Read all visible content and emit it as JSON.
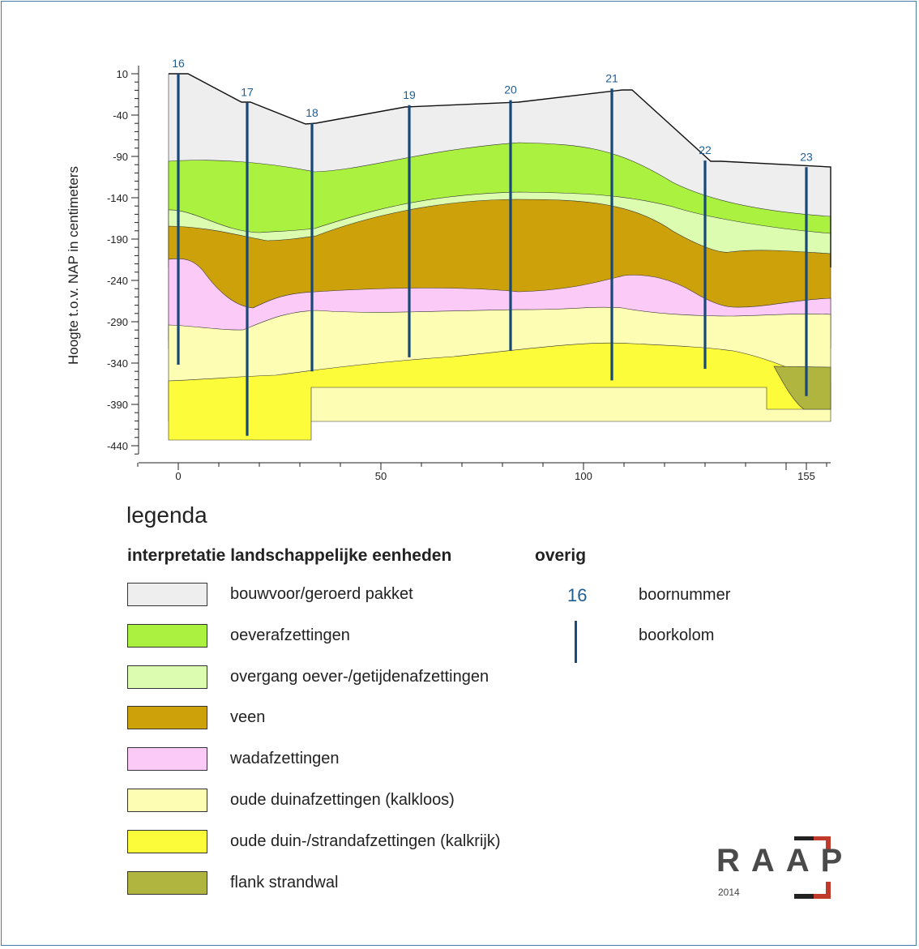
{
  "chart_data": {
    "type": "cross-section",
    "ylabel": "Hoogte t.o.v. NAP in centimeters",
    "xlabel": "",
    "y_ticks": [
      "10",
      "-40",
      "-90",
      "-140",
      "-190",
      "-240",
      "-290",
      "-340",
      "-390",
      "-440"
    ],
    "x_ticks": [
      "0",
      "50",
      "100",
      "155"
    ],
    "ylim": [
      -460,
      20
    ],
    "xlim": [
      -10,
      160
    ],
    "boreholes": [
      {
        "id": "16",
        "x": 0,
        "top": 10,
        "bottom": -342
      },
      {
        "id": "17",
        "x": 17,
        "top": -25,
        "bottom": -428
      },
      {
        "id": "18",
        "x": 33,
        "top": -50,
        "bottom": -350
      },
      {
        "id": "19",
        "x": 57,
        "top": -28,
        "bottom": -333
      },
      {
        "id": "20",
        "x": 82,
        "top": -22,
        "bottom": -325
      },
      {
        "id": "21",
        "x": 107,
        "top": -8,
        "bottom": -361
      },
      {
        "id": "22",
        "x": 130,
        "top": -95,
        "bottom": -347
      },
      {
        "id": "23",
        "x": 155,
        "top": -103,
        "bottom": -380
      }
    ],
    "units": [
      {
        "name": "bouwvoor/geroerd pakket",
        "color": "#eeeeee"
      },
      {
        "name": "oeverafzettingen",
        "color": "#aaf23f"
      },
      {
        "name": "overgang oever-/getijdenafzettingen",
        "color": "#dcfdaf"
      },
      {
        "name": "veen",
        "color": "#cda10a"
      },
      {
        "name": "wadafzettingen",
        "color": "#fccaf7"
      },
      {
        "name": "oude duinafzettingen (kalkloos)",
        "color": "#fdfdb3"
      },
      {
        "name": "oude duin-/strandafzettingen (kalkrijk)",
        "color": "#fcfc3a"
      },
      {
        "name": "flank strandwal",
        "color": "#b0b540"
      }
    ]
  },
  "legend": {
    "title": "legenda",
    "units_heading": "interpretatie landschappelijke eenheden",
    "other_heading": "overig",
    "other_items": [
      {
        "symbol": "16",
        "label": "boornummer"
      },
      {
        "symbol": "boorkolom-icon",
        "label": "boorkolom"
      }
    ]
  },
  "logo": {
    "letters": "RAAP",
    "year": "2014",
    "accent": "#c0392b"
  }
}
